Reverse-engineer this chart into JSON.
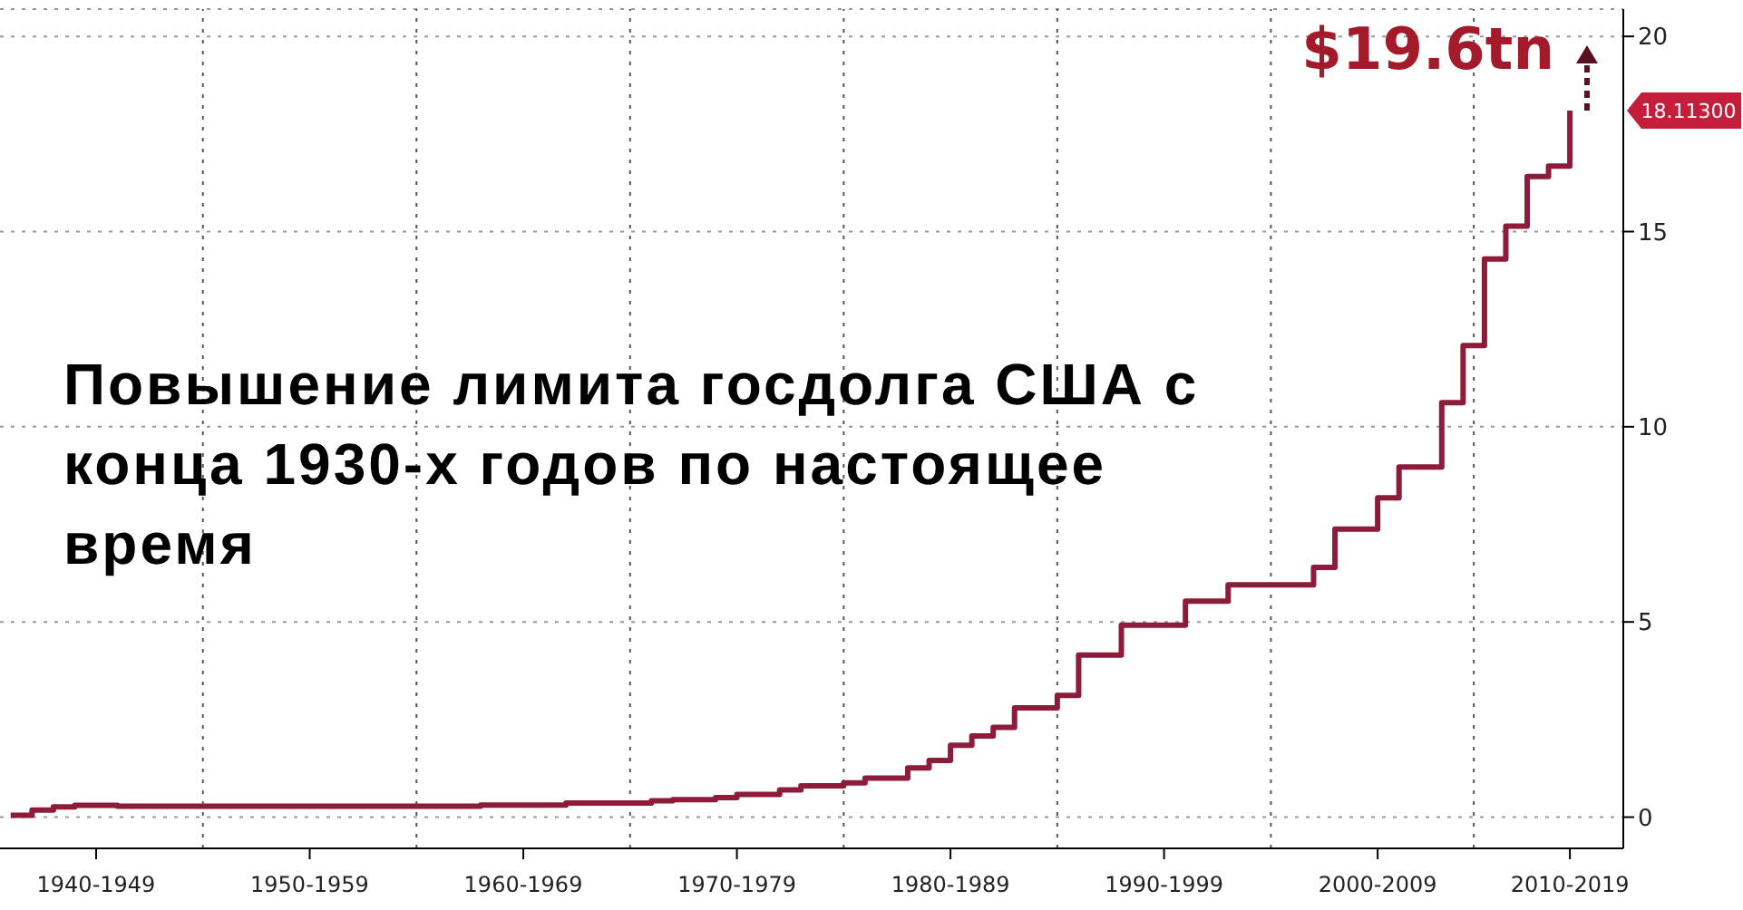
{
  "chart_data": {
    "type": "step",
    "title": "Повышение лимита госдолга США с конца 1930-х годов по настоящее время",
    "categories": [
      null,
      null,
      null,
      null,
      "1940-1949",
      null,
      null,
      null,
      null,
      null,
      null,
      null,
      null,
      null,
      "1950-1959",
      null,
      null,
      null,
      null,
      null,
      null,
      null,
      null,
      null,
      "1960-1969",
      null,
      null,
      null,
      null,
      null,
      null,
      null,
      null,
      null,
      "1970-1979",
      null,
      null,
      null,
      null,
      null,
      null,
      null,
      null,
      null,
      "1980-1989",
      null,
      null,
      null,
      null,
      null,
      null,
      null,
      null,
      null,
      "1990-1999",
      null,
      null,
      null,
      null,
      null,
      null,
      null,
      null,
      null,
      "2000-2009",
      null,
      null,
      null,
      null,
      null,
      null,
      null,
      null,
      "2010-2019",
      null,
      null
    ],
    "series": [
      {
        "color": "#8c1c3a",
        "values": [
          0.05,
          0.18,
          0.26,
          0.3,
          0.3,
          0.28,
          0.28,
          0.28,
          0.28,
          0.28,
          0.28,
          0.28,
          0.28,
          0.28,
          0.28,
          0.28,
          0.28,
          0.28,
          0.28,
          0.28,
          0.28,
          0.28,
          0.31,
          0.31,
          0.31,
          0.31,
          0.36,
          0.36,
          0.36,
          0.36,
          0.42,
          0.45,
          0.45,
          0.5,
          0.58,
          0.58,
          0.7,
          0.8,
          0.8,
          0.88,
          1.0,
          1.0,
          1.26,
          1.45,
          1.84,
          2.08,
          2.3,
          2.8,
          2.8,
          3.12,
          4.15,
          4.15,
          4.92,
          4.92,
          4.92,
          5.53,
          5.53,
          5.95,
          5.95,
          5.95,
          5.95,
          6.4,
          7.38,
          7.38,
          8.18,
          8.97,
          8.97,
          10.62,
          12.08,
          14.3,
          15.14,
          16.41,
          16.68,
          18.1,
          null,
          null
        ]
      }
    ],
    "ylim": [
      -0.8,
      20.7
    ],
    "yticks": [
      0,
      5,
      10,
      15,
      20
    ],
    "grid": true,
    "line_style": "solid",
    "marker": "none",
    "annotations": [
      "$19.6tn",
      "18.11300"
    ]
  }
}
